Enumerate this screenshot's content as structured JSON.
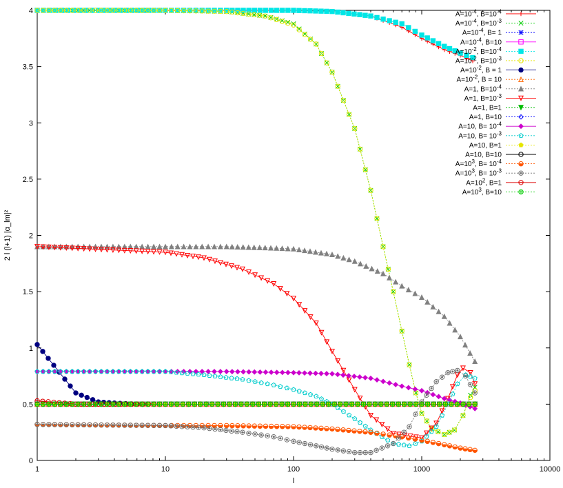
{
  "chart_data": {
    "type": "line",
    "title": "",
    "xlabel": "l",
    "ylabel": "2 l (l+1) |α_lm|²",
    "xscale": "log",
    "xlim": [
      1,
      10000
    ],
    "ylim": [
      0,
      4
    ],
    "x_ticks": [
      1,
      10,
      100,
      1000,
      10000
    ],
    "x_tick_labels": [
      "1",
      "10",
      "100",
      "1000",
      "10000"
    ],
    "y_ticks": [
      0,
      0.5,
      1,
      1.5,
      2,
      2.5,
      3,
      3.5,
      4
    ],
    "y_tick_labels": [
      "0",
      "0.5",
      "1",
      "1.5",
      "2",
      "2.5",
      "3",
      "3.5",
      "4"
    ],
    "grid": false,
    "legend_position": "top-right",
    "series": [
      {
        "name": "A=10-4, B=10-4",
        "A_exp": "-4",
        "B_exp": "-4",
        "color": "#ff0000",
        "marker": "plus",
        "points": [
          [
            1,
            4
          ],
          [
            3,
            4
          ],
          [
            10,
            4
          ],
          [
            30,
            4
          ],
          [
            100,
            4
          ],
          [
            200,
            3.99
          ],
          [
            400,
            3.95
          ],
          [
            700,
            3.85
          ],
          [
            1000,
            3.75
          ],
          [
            1500,
            3.65
          ],
          [
            2000,
            3.6
          ],
          [
            2500,
            3.55
          ]
        ]
      },
      {
        "name": "A=10-4, B=10-3",
        "A_exp": "-4",
        "B_exp": "-3",
        "color": "#00cc00",
        "marker": "x",
        "points": [
          [
            1,
            4
          ],
          [
            10,
            4
          ],
          [
            30,
            3.99
          ],
          [
            60,
            3.95
          ],
          [
            100,
            3.88
          ],
          [
            150,
            3.7
          ],
          [
            200,
            3.45
          ],
          [
            300,
            2.95
          ],
          [
            400,
            2.4
          ],
          [
            500,
            1.9
          ],
          [
            600,
            1.5
          ],
          [
            700,
            1.15
          ],
          [
            800,
            0.85
          ],
          [
            900,
            0.6
          ],
          [
            1000,
            0.42
          ],
          [
            1200,
            0.28
          ],
          [
            1500,
            0.23
          ],
          [
            1800,
            0.27
          ],
          [
            2100,
            0.4
          ],
          [
            2400,
            0.58
          ],
          [
            2600,
            0.65
          ]
        ]
      },
      {
        "name": "A=10-4, B= 1",
        "A_exp": "-4",
        "B_exp": "",
        "color": "#0000ff",
        "marker": "asterisk",
        "points": [
          [
            1,
            0.5
          ],
          [
            10,
            0.5
          ],
          [
            100,
            0.5
          ],
          [
            1000,
            0.5
          ],
          [
            2600,
            0.5
          ]
        ]
      },
      {
        "name": "A=10-4, B=10",
        "A_exp": "-4",
        "B_exp": "",
        "color": "#ff00ff",
        "marker": "square",
        "points": [
          [
            1,
            0.5
          ],
          [
            10,
            0.5
          ],
          [
            100,
            0.5
          ],
          [
            1000,
            0.5
          ],
          [
            2600,
            0.5
          ]
        ]
      },
      {
        "name": "A=10-2, B=10-4",
        "A_exp": "-2",
        "B_exp": "-4",
        "color": "#00e6e6",
        "marker": "square-filled",
        "points": [
          [
            1,
            4
          ],
          [
            3,
            4
          ],
          [
            10,
            4
          ],
          [
            30,
            4
          ],
          [
            100,
            4
          ],
          [
            200,
            3.99
          ],
          [
            400,
            3.95
          ],
          [
            700,
            3.88
          ],
          [
            1000,
            3.78
          ],
          [
            1500,
            3.68
          ],
          [
            2000,
            3.62
          ],
          [
            2500,
            3.58
          ]
        ]
      },
      {
        "name": "A=10-2, B=10-3",
        "A_exp": "-2",
        "B_exp": "-3",
        "color": "#e6e600",
        "marker": "circle",
        "points": [
          [
            1,
            4
          ],
          [
            10,
            4
          ],
          [
            30,
            3.99
          ],
          [
            60,
            3.95
          ],
          [
            100,
            3.87
          ],
          [
            150,
            3.7
          ],
          [
            200,
            3.45
          ],
          [
            300,
            2.95
          ],
          [
            400,
            2.4
          ],
          [
            500,
            1.9
          ],
          [
            600,
            1.5
          ],
          [
            700,
            1.15
          ],
          [
            800,
            0.85
          ],
          [
            900,
            0.6
          ],
          [
            1000,
            0.42
          ],
          [
            1200,
            0.28
          ],
          [
            1500,
            0.23
          ],
          [
            1800,
            0.27
          ],
          [
            2100,
            0.4
          ],
          [
            2400,
            0.56
          ],
          [
            2600,
            0.62
          ]
        ]
      },
      {
        "name": "A=10-2, B = 1",
        "A_exp": "-2",
        "B_exp": "",
        "color": "#000080",
        "marker": "circle-filled",
        "points": [
          [
            1,
            1.03
          ],
          [
            2,
            0.6
          ],
          [
            3,
            0.52
          ],
          [
            4,
            0.51
          ],
          [
            6,
            0.5
          ],
          [
            10,
            0.5
          ],
          [
            100,
            0.5
          ],
          [
            1000,
            0.5
          ],
          [
            2600,
            0.5
          ]
        ]
      },
      {
        "name": "A=10-2, B = 10",
        "A_exp": "-2",
        "B_exp": "",
        "color": "#ff6600",
        "marker": "triangle",
        "points": [
          [
            1,
            0.5
          ],
          [
            10,
            0.5
          ],
          [
            100,
            0.5
          ],
          [
            1000,
            0.5
          ],
          [
            2600,
            0.5
          ]
        ]
      },
      {
        "name": "A=1, B=10-4",
        "A_exp": "",
        "B_exp": "-4",
        "color": "#808080",
        "marker": "triangle-filled",
        "points": [
          [
            1,
            1.9
          ],
          [
            10,
            1.9
          ],
          [
            30,
            1.9
          ],
          [
            60,
            1.89
          ],
          [
            100,
            1.88
          ],
          [
            200,
            1.83
          ],
          [
            300,
            1.77
          ],
          [
            500,
            1.66
          ],
          [
            700,
            1.55
          ],
          [
            1000,
            1.45
          ],
          [
            1500,
            1.28
          ],
          [
            2000,
            1.1
          ],
          [
            2600,
            0.88
          ]
        ]
      },
      {
        "name": "A=1, B=10-3",
        "A_exp": "",
        "B_exp": "-3",
        "color": "#ff0000",
        "marker": "triangle-down",
        "points": [
          [
            1,
            1.9
          ],
          [
            10,
            1.85
          ],
          [
            20,
            1.8
          ],
          [
            40,
            1.7
          ],
          [
            70,
            1.57
          ],
          [
            100,
            1.44
          ],
          [
            150,
            1.22
          ],
          [
            200,
            0.97
          ],
          [
            300,
            0.63
          ],
          [
            400,
            0.4
          ],
          [
            600,
            0.24
          ],
          [
            1000,
            0.2
          ],
          [
            1300,
            0.33
          ],
          [
            1600,
            0.55
          ],
          [
            1900,
            0.76
          ],
          [
            2100,
            0.82
          ],
          [
            2400,
            0.78
          ],
          [
            2600,
            0.68
          ]
        ]
      },
      {
        "name": "A=1, B=1",
        "A_exp": "",
        "B_exp": "",
        "color": "#00bb00",
        "marker": "triangle-down-filled",
        "points": [
          [
            1,
            0.5
          ],
          [
            10,
            0.5
          ],
          [
            100,
            0.5
          ],
          [
            1000,
            0.5
          ],
          [
            2600,
            0.5
          ]
        ]
      },
      {
        "name": "A=1, B=10",
        "A_exp": "",
        "B_exp": "",
        "color": "#0000ff",
        "marker": "diamond",
        "points": [
          [
            1,
            0.5
          ],
          [
            10,
            0.5
          ],
          [
            100,
            0.5
          ],
          [
            1000,
            0.5
          ],
          [
            2600,
            0.5
          ]
        ]
      },
      {
        "name": "A=10, B= 10-4",
        "A_exp": "",
        "B_exp": "-4",
        "color": "#cc00cc",
        "marker": "diamond-filled",
        "points": [
          [
            1,
            0.79
          ],
          [
            10,
            0.79
          ],
          [
            30,
            0.79
          ],
          [
            100,
            0.78
          ],
          [
            200,
            0.77
          ],
          [
            400,
            0.73
          ],
          [
            700,
            0.66
          ],
          [
            1000,
            0.62
          ],
          [
            1500,
            0.55
          ],
          [
            2000,
            0.51
          ],
          [
            2600,
            0.46
          ]
        ]
      },
      {
        "name": "A=10, B= 10-3",
        "A_exp": "",
        "B_exp": "-3",
        "color": "#00cccc",
        "marker": "pentagon",
        "points": [
          [
            1,
            0.79
          ],
          [
            10,
            0.79
          ],
          [
            20,
            0.76
          ],
          [
            40,
            0.72
          ],
          [
            70,
            0.67
          ],
          [
            100,
            0.63
          ],
          [
            150,
            0.57
          ],
          [
            200,
            0.5
          ],
          [
            300,
            0.37
          ],
          [
            400,
            0.27
          ],
          [
            600,
            0.15
          ],
          [
            800,
            0.13
          ],
          [
            1000,
            0.17
          ],
          [
            1300,
            0.3
          ],
          [
            1600,
            0.5
          ],
          [
            1900,
            0.68
          ],
          [
            2200,
            0.76
          ],
          [
            2600,
            0.73
          ]
        ]
      },
      {
        "name": "A=10, B=1",
        "A_exp": "",
        "B_exp": "",
        "color": "#e6e600",
        "marker": "pentagon-filled",
        "points": [
          [
            1,
            0.5
          ],
          [
            10,
            0.5
          ],
          [
            100,
            0.5
          ],
          [
            1000,
            0.5
          ],
          [
            2600,
            0.5
          ]
        ]
      },
      {
        "name": "A=10, B=10",
        "A_exp": "",
        "B_exp": "",
        "color": "#000000",
        "marker": "circle",
        "points": [
          [
            1,
            0.5
          ],
          [
            10,
            0.5
          ],
          [
            100,
            0.5
          ],
          [
            1000,
            0.5
          ],
          [
            2600,
            0.5
          ]
        ]
      },
      {
        "name": "A=103, B= 10-4",
        "A_exp": "3",
        "B_exp": "-4",
        "color": "#ff5500",
        "marker": "circle-half",
        "points": [
          [
            1,
            0.32
          ],
          [
            10,
            0.31
          ],
          [
            30,
            0.31
          ],
          [
            100,
            0.3
          ],
          [
            200,
            0.28
          ],
          [
            400,
            0.25
          ],
          [
            700,
            0.21
          ],
          [
            1000,
            0.18
          ],
          [
            1500,
            0.14
          ],
          [
            2000,
            0.11
          ],
          [
            2600,
            0.09
          ]
        ]
      },
      {
        "name": "A=103, B= 10-3",
        "A_exp": "3",
        "B_exp": "-3",
        "color": "#707070",
        "marker": "circle-dot",
        "points": [
          [
            1,
            0.32
          ],
          [
            10,
            0.31
          ],
          [
            20,
            0.29
          ],
          [
            40,
            0.25
          ],
          [
            70,
            0.21
          ],
          [
            100,
            0.17
          ],
          [
            150,
            0.13
          ],
          [
            200,
            0.1
          ],
          [
            300,
            0.07
          ],
          [
            400,
            0.07
          ],
          [
            600,
            0.15
          ],
          [
            800,
            0.3
          ],
          [
            1000,
            0.52
          ],
          [
            1300,
            0.7
          ],
          [
            1600,
            0.78
          ],
          [
            1900,
            0.8
          ],
          [
            2200,
            0.75
          ],
          [
            2600,
            0.6
          ]
        ]
      },
      {
        "name": "A=102, B=1",
        "A_exp": "2",
        "B_exp": "",
        "color": "#dd0000",
        "marker": "circle-bar",
        "points": [
          [
            1,
            0.53
          ],
          [
            2,
            0.5
          ],
          [
            3,
            0.5
          ],
          [
            10,
            0.5
          ],
          [
            100,
            0.5
          ],
          [
            1000,
            0.5
          ],
          [
            2600,
            0.5
          ]
        ]
      },
      {
        "name": "A=103, B=10",
        "A_exp": "3",
        "B_exp": "",
        "color": "#00cc00",
        "marker": "circle-cross",
        "points": [
          [
            1,
            0.5
          ],
          [
            10,
            0.5
          ],
          [
            100,
            0.5
          ],
          [
            1000,
            0.5
          ],
          [
            2600,
            0.5
          ]
        ]
      }
    ]
  }
}
